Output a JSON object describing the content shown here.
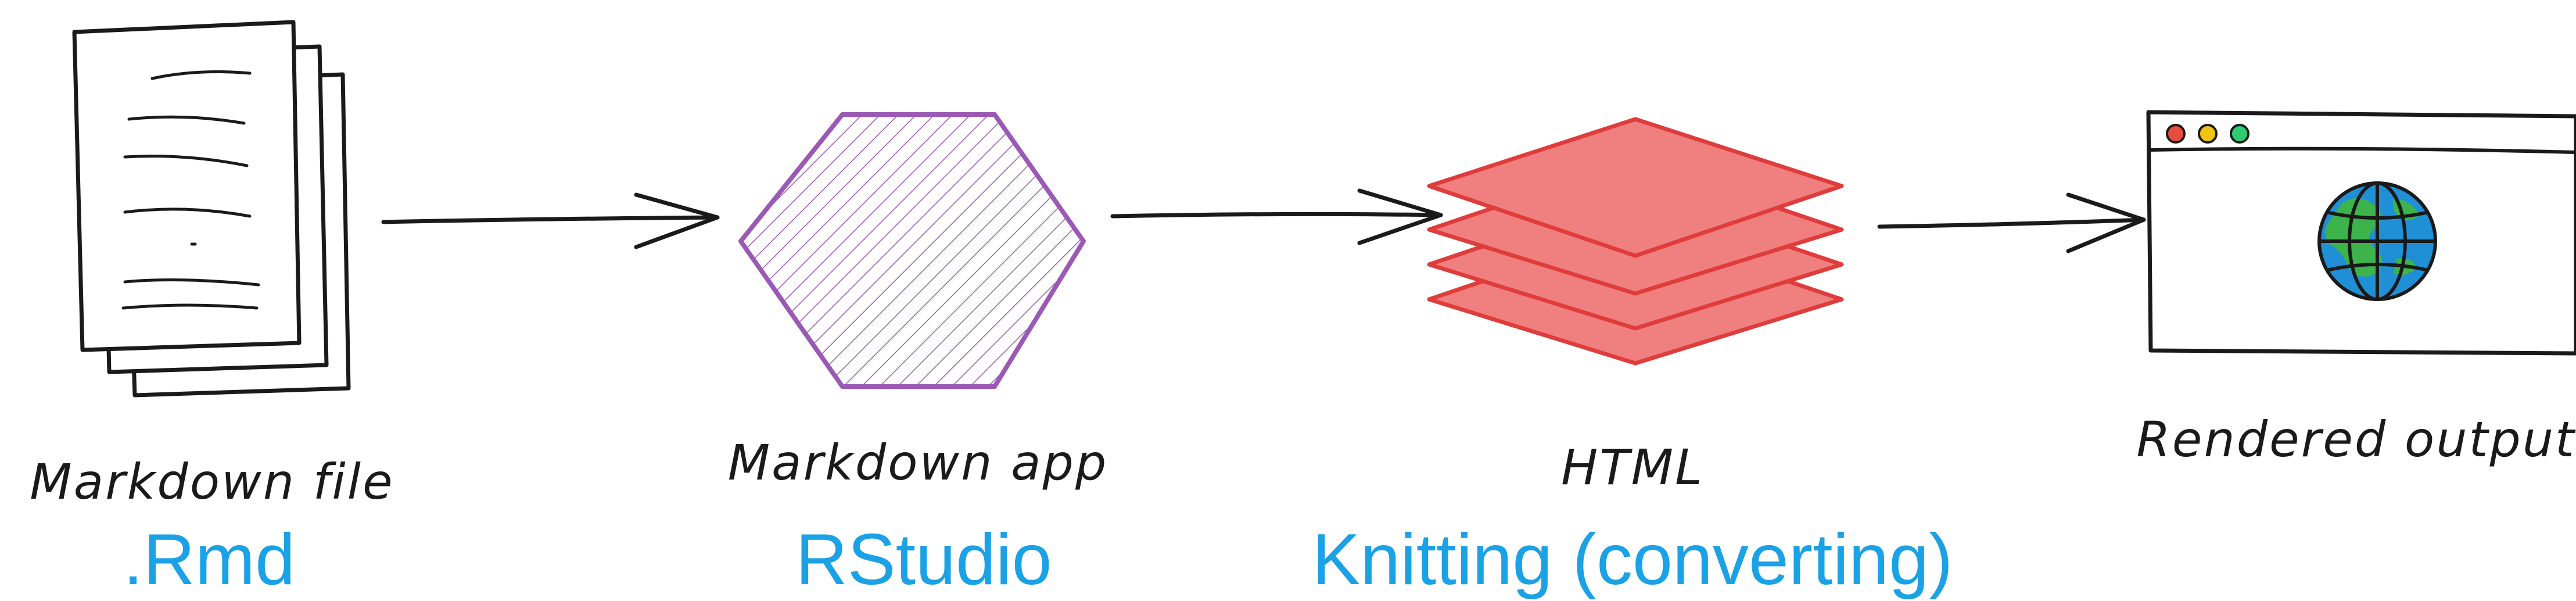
{
  "nodes": [
    {
      "id": "markdown-file",
      "label": "Markdown file",
      "sublabel": ".Rmd",
      "icon": "document-stack-icon"
    },
    {
      "id": "markdown-app",
      "label": "Markdown app",
      "sublabel": "RStudio",
      "icon": "hexagon-icon"
    },
    {
      "id": "html",
      "label": "HTML",
      "sublabel": "Knitting (converting)",
      "icon": "layers-icon"
    },
    {
      "id": "rendered-output",
      "label": "Rendered output",
      "sublabel": "",
      "icon": "browser-globe-icon"
    }
  ],
  "colors": {
    "ink": "#1a1a1a",
    "sublabel": "#1aa1e6",
    "hexagon": "#9b59b6",
    "layers_fill": "#f08080",
    "layers_stroke": "#e03c3c",
    "globe_ocean": "#1f8fd6",
    "globe_land": "#3cb44b",
    "dot_red": "#e74c3c",
    "dot_yellow": "#f1c40f",
    "dot_green": "#2ecc71"
  }
}
